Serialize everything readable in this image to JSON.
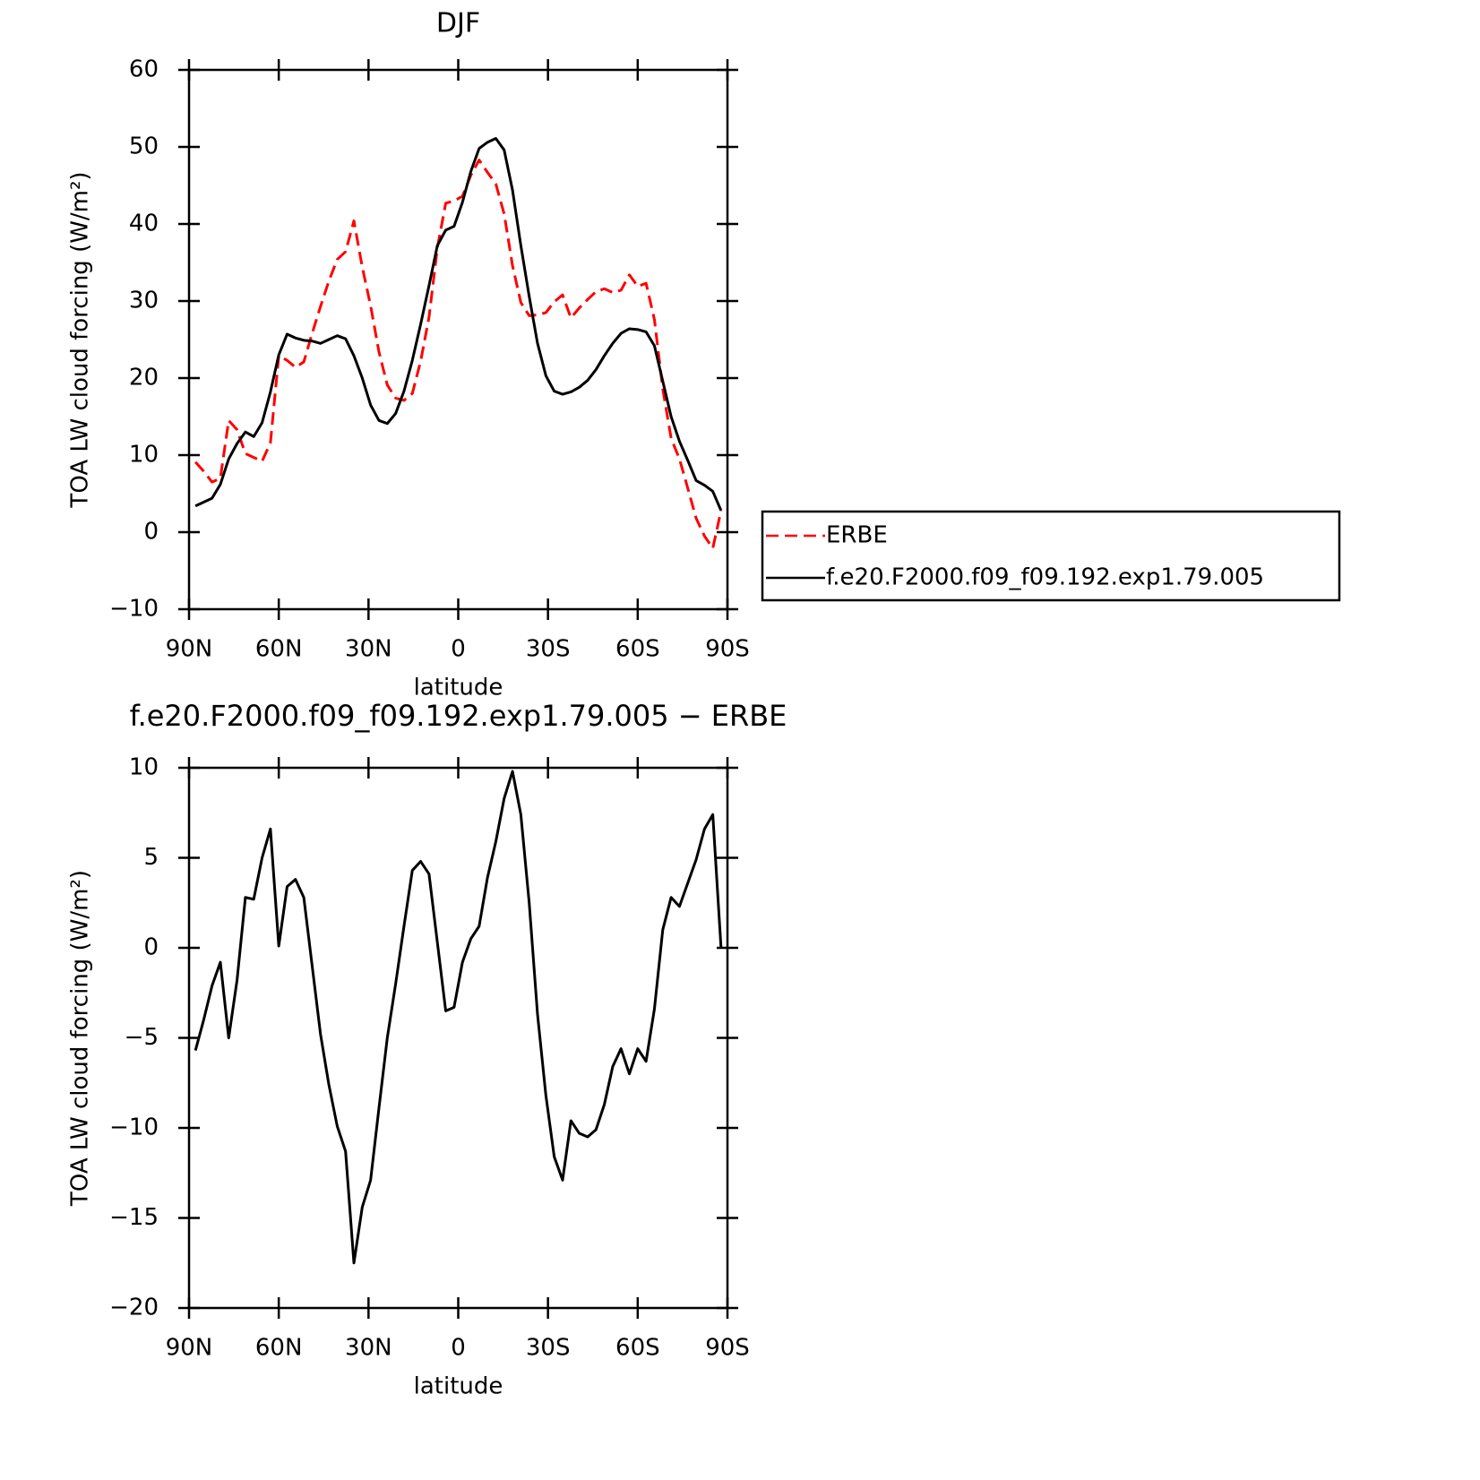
{
  "chart_data": [
    {
      "type": "line",
      "title": "DJF",
      "xlabel": "latitude",
      "ylabel": "TOA LW cloud forcing (W/m²)",
      "x": [
        87.86,
        85.1,
        82.31,
        79.53,
        76.74,
        73.95,
        71.16,
        68.37,
        65.58,
        62.79,
        60.0,
        57.21,
        54.42,
        51.63,
        48.84,
        46.04,
        43.25,
        40.46,
        37.67,
        34.88,
        32.09,
        29.3,
        26.51,
        23.72,
        20.93,
        18.14,
        15.35,
        12.56,
        9.77,
        6.98,
        4.19,
        1.4,
        -1.4,
        -4.19,
        -6.98,
        -9.77,
        -12.56,
        -15.35,
        -18.14,
        -20.93,
        -23.72,
        -26.51,
        -29.3,
        -32.09,
        -34.88,
        -37.67,
        -40.46,
        -43.25,
        -46.04,
        -48.84,
        -51.63,
        -54.42,
        -57.21,
        -60.0,
        -62.79,
        -65.58,
        -68.37,
        -71.16,
        -73.95,
        -76.74,
        -79.53,
        -82.31,
        -85.1,
        -87.86
      ],
      "series": [
        {
          "name": "ERBE",
          "color": "#ff0000",
          "dashed": true,
          "values": [
            9.1,
            7.9,
            6.5,
            7.0,
            14.5,
            13.3,
            10.2,
            9.7,
            9.2,
            11.6,
            22.9,
            22.3,
            21.4,
            22.1,
            25.8,
            29.3,
            32.6,
            35.4,
            36.4,
            40.4,
            34.4,
            29.4,
            23.4,
            19.1,
            17.4,
            17.1,
            18.0,
            22.2,
            27.9,
            36.9,
            42.7,
            43.0,
            43.6,
            46.3,
            48.3,
            46.7,
            45.2,
            41.3,
            34.6,
            29.8,
            28.1,
            28.2,
            28.5,
            29.9,
            30.8,
            27.8,
            29.1,
            30.2,
            31.2,
            31.6,
            31.1,
            31.4,
            33.4,
            31.9,
            32.3,
            27.6,
            18.6,
            12.2,
            9.5,
            5.7,
            1.8,
            -0.5,
            -2.1,
            2.8
          ]
        },
        {
          "name": "f.e20.F2000.f09_f09.192.exp1.79.005",
          "color": "#000000",
          "dashed": false,
          "values": [
            3.4,
            3.9,
            4.4,
            6.2,
            9.5,
            11.5,
            13.0,
            12.4,
            14.2,
            18.2,
            23.0,
            25.7,
            25.2,
            24.9,
            24.8,
            24.5,
            25.0,
            25.5,
            25.1,
            22.9,
            20.0,
            16.5,
            14.5,
            14.1,
            15.4,
            18.3,
            22.3,
            27.0,
            32.0,
            37.2,
            39.2,
            39.7,
            42.8,
            46.8,
            49.8,
            50.6,
            51.1,
            49.6,
            44.4,
            37.2,
            30.6,
            24.5,
            20.3,
            18.3,
            17.9,
            18.2,
            18.8,
            19.7,
            21.1,
            22.9,
            24.5,
            25.8,
            26.4,
            26.3,
            26.0,
            24.2,
            19.6,
            15.0,
            11.8,
            9.3,
            6.7,
            6.1,
            5.3,
            2.8
          ]
        }
      ],
      "xlim": [
        90,
        -90
      ],
      "xticks": [
        {
          "value": 90,
          "label": "90N"
        },
        {
          "value": 60,
          "label": "60N"
        },
        {
          "value": 30,
          "label": "30N"
        },
        0,
        {
          "value": -30,
          "label": "30S"
        },
        {
          "value": -60,
          "label": "60S"
        },
        {
          "value": -90,
          "label": "90S"
        }
      ],
      "ylim": [
        -10,
        60
      ],
      "yticks": [
        {
          "value": -10,
          "label": "−10"
        },
        0,
        10,
        20,
        30,
        40,
        50,
        60
      ],
      "legend": "outside-right"
    },
    {
      "type": "line",
      "title": "f.e20.F2000.f09_f09.192.exp1.79.005 − ERBE",
      "xlabel": "latitude",
      "ylabel": "TOA LW cloud forcing (W/m²)",
      "x": [
        87.86,
        85.1,
        82.31,
        79.53,
        76.74,
        73.95,
        71.16,
        68.37,
        65.58,
        62.79,
        60.0,
        57.21,
        54.42,
        51.63,
        48.84,
        46.04,
        43.25,
        40.46,
        37.67,
        34.88,
        32.09,
        29.3,
        26.51,
        23.72,
        20.93,
        18.14,
        15.35,
        12.56,
        9.77,
        6.98,
        4.19,
        1.4,
        -1.4,
        -4.19,
        -6.98,
        -9.77,
        -12.56,
        -15.35,
        -18.14,
        -20.93,
        -23.72,
        -26.51,
        -29.3,
        -32.09,
        -34.88,
        -37.67,
        -40.46,
        -43.25,
        -46.04,
        -48.84,
        -51.63,
        -54.42,
        -57.21,
        -60.0,
        -62.79,
        -65.58,
        -68.37,
        -71.16,
        -73.95,
        -76.74,
        -79.53,
        -82.31,
        -85.1,
        -87.86
      ],
      "series": [
        {
          "color": "#000000",
          "dashed": false,
          "values": [
            -5.7,
            -4.0,
            -2.1,
            -0.8,
            -5.0,
            -1.8,
            2.8,
            2.7,
            5.0,
            6.6,
            0.1,
            3.4,
            3.8,
            2.8,
            -1.0,
            -4.8,
            -7.6,
            -9.9,
            -11.3,
            -17.5,
            -14.4,
            -12.9,
            -8.9,
            -5.0,
            -2.0,
            1.2,
            4.3,
            4.8,
            4.1,
            0.3,
            -3.5,
            -3.3,
            -0.8,
            0.5,
            1.2,
            3.9,
            5.9,
            8.3,
            9.8,
            7.4,
            2.5,
            -3.7,
            -8.2,
            -11.6,
            -12.9,
            -9.6,
            -10.3,
            -10.5,
            -10.1,
            -8.7,
            -6.6,
            -5.6,
            -7.0,
            -5.6,
            -6.3,
            -3.4,
            1.0,
            2.8,
            2.3,
            3.6,
            4.9,
            6.6,
            7.4,
            0.0
          ]
        }
      ],
      "xlim": [
        90,
        -90
      ],
      "xticks": [
        {
          "value": 90,
          "label": "90N"
        },
        {
          "value": 60,
          "label": "60N"
        },
        {
          "value": 30,
          "label": "30N"
        },
        0,
        {
          "value": -30,
          "label": "30S"
        },
        {
          "value": -60,
          "label": "60S"
        },
        {
          "value": -90,
          "label": "90S"
        }
      ],
      "ylim": [
        -20,
        10
      ],
      "yticks": [
        {
          "value": -20,
          "label": "−20"
        },
        {
          "value": -15,
          "label": "−15"
        },
        {
          "value": -10,
          "label": "−10"
        },
        {
          "value": -5,
          "label": "−5"
        },
        0,
        5,
        10
      ]
    }
  ]
}
